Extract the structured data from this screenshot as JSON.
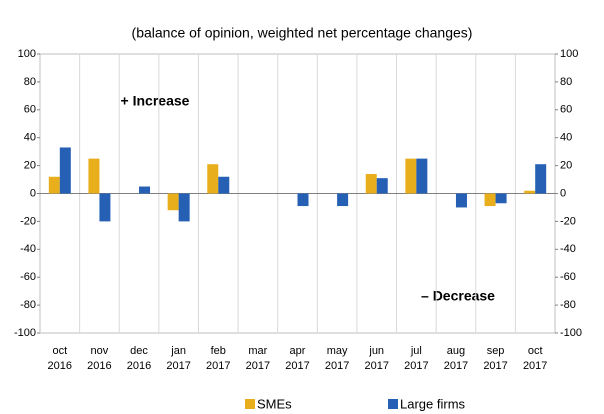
{
  "chart_data": {
    "type": "bar",
    "title": "(balance of opinion, weighted net percentage changes)",
    "annotations": [
      "+ Increase",
      "– Decrease"
    ],
    "categories": [
      "oct 2016",
      "nov 2016",
      "dec 2016",
      "jan 2017",
      "feb 2017",
      "mar 2017",
      "apr 2017",
      "may 2017",
      "jun 2017",
      "jul 2017",
      "aug 2017",
      "sep 2017",
      "oct 2017"
    ],
    "series": [
      {
        "name": "SMEs",
        "color": "#e8ae1c",
        "values": [
          12,
          25,
          0,
          -12,
          21,
          0,
          0,
          0,
          14,
          25,
          0,
          -9,
          2
        ]
      },
      {
        "name": "Large firms",
        "color": "#2660b5",
        "values": [
          33,
          -20,
          5,
          -20,
          12,
          0,
          -9,
          -9,
          11,
          25,
          -10,
          -7,
          21
        ]
      }
    ],
    "ylim": [
      -100,
      100
    ],
    "yticks": [
      -100,
      -80,
      -60,
      -40,
      -20,
      0,
      20,
      40,
      60,
      80,
      100
    ],
    "y2lim": [
      -100,
      100
    ],
    "y2ticks": [
      -100,
      -80,
      -60,
      -40,
      -20,
      0,
      20,
      40,
      60,
      80,
      100
    ]
  }
}
